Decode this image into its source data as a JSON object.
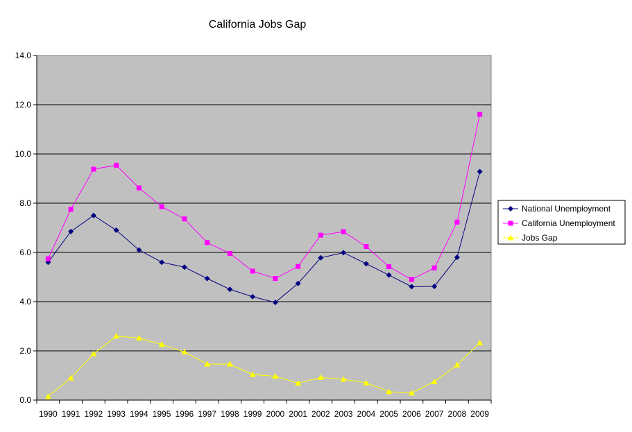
{
  "chart_data": {
    "type": "line",
    "title": "California Jobs Gap",
    "xlabel": "",
    "ylabel": "",
    "categories": [
      "1990",
      "1991",
      "1992",
      "1993",
      "1994",
      "1995",
      "1996",
      "1997",
      "1998",
      "1999",
      "2000",
      "2001",
      "2002",
      "2003",
      "2004",
      "2005",
      "2006",
      "2007",
      "2008",
      "2009"
    ],
    "ylim": [
      0,
      14
    ],
    "y_ticks": [
      "0.0",
      "2.0",
      "4.0",
      "6.0",
      "8.0",
      "10.0",
      "12.0",
      "14.0"
    ],
    "y_tick_values": [
      0,
      2,
      4,
      6,
      8,
      10,
      12,
      14
    ],
    "grid": true,
    "legend_position": "right",
    "plot_background": "#C0C0C0",
    "series": [
      {
        "name": "National Unemployment",
        "color": "#000080",
        "marker": "diamond",
        "values": [
          5.6,
          6.85,
          7.5,
          6.9,
          6.1,
          5.6,
          5.4,
          4.94,
          4.5,
          4.2,
          3.97,
          4.74,
          5.78,
          5.99,
          5.54,
          5.08,
          4.61,
          4.62,
          5.8,
          9.28
        ]
      },
      {
        "name": "California Unemployment",
        "color": "#FF00FF",
        "marker": "square",
        "values": [
          5.74,
          7.75,
          9.38,
          9.54,
          8.62,
          7.86,
          7.36,
          6.4,
          5.96,
          5.24,
          4.94,
          5.43,
          6.7,
          6.84,
          6.24,
          5.42,
          4.9,
          5.37,
          7.23,
          11.61
        ]
      },
      {
        "name": "Jobs Gap",
        "color": "#FFFF00",
        "marker": "triangle",
        "values": [
          0.14,
          0.9,
          1.88,
          2.6,
          2.52,
          2.26,
          1.96,
          1.46,
          1.46,
          1.04,
          0.97,
          0.69,
          0.92,
          0.85,
          0.7,
          0.34,
          0.29,
          0.75,
          1.43,
          2.33
        ]
      }
    ]
  }
}
